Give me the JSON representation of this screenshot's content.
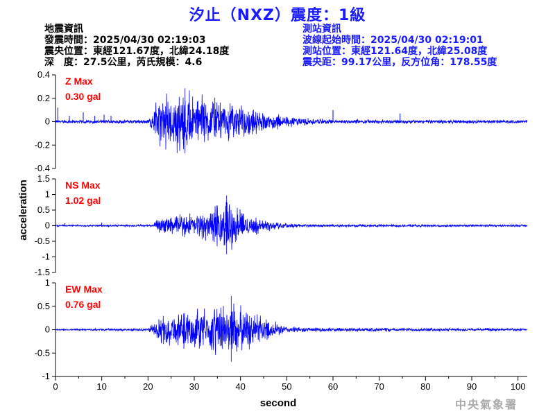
{
  "title": "汐止（NXZ）震度：1級",
  "quake_info": {
    "heading": "地震資訊",
    "origin_time": "發震時間：2025/04/30 02:19:03",
    "epicenter": "震央位置：東經121.67度，北緯24.18度",
    "depth_magnitude": "深　度：27.5公里，芮氏規模：4.6"
  },
  "station_info": {
    "heading": "測站資訊",
    "wave_start": "波線起始時間：2025/04/30 02:19:01",
    "station_location": "測站位置：東經121.64度，北緯25.08度",
    "distance_azimuth": "震央距：99.17公里，反方位角：178.55度"
  },
  "watermark": "中央氣象署",
  "colors": {
    "trace": "#0000ff",
    "max_label": "#ff0000",
    "title": "#1a1aff",
    "axis": "#000000"
  },
  "chart_data": {
    "type": "line",
    "xlabel": "second",
    "ylabel": "acceleration",
    "xlim": [
      0,
      102
    ],
    "x_ticks": [
      0,
      10,
      20,
      30,
      40,
      50,
      60,
      70,
      80,
      90,
      100
    ],
    "panels": [
      {
        "component": "Z",
        "max_label": "Z Max",
        "max_value": "0.30 gal",
        "peak": 0.3,
        "ylim": [
          -0.4,
          0.4
        ],
        "y_ticks": [
          -0.4,
          -0.2,
          0,
          0.2,
          0.4
        ],
        "y_tick_labels": [
          "-0.4",
          "-0.2",
          "0",
          "0.2",
          "0.4"
        ],
        "envelope": [
          [
            0,
            0.015
          ],
          [
            20,
            0.02
          ],
          [
            21,
            0.08
          ],
          [
            22,
            0.2
          ],
          [
            25,
            0.26
          ],
          [
            28,
            0.28
          ],
          [
            31,
            0.24
          ],
          [
            35,
            0.2
          ],
          [
            40,
            0.16
          ],
          [
            45,
            0.09
          ],
          [
            50,
            0.05
          ],
          [
            55,
            0.03
          ],
          [
            60,
            0.02
          ],
          [
            102,
            0.015
          ]
        ],
        "spikes": [
          [
            0.5,
            0.12
          ],
          [
            3,
            0.05
          ],
          [
            6,
            0.08
          ],
          [
            8.5,
            0.05
          ],
          [
            10.5,
            0.06
          ],
          [
            12,
            0.05
          ],
          [
            60,
            0.1
          ],
          [
            74.5,
            0.07
          ]
        ]
      },
      {
        "component": "NS",
        "max_label": "NS Max",
        "max_value": "1.02 gal",
        "peak": 1.02,
        "ylim": [
          -1.5,
          1.5
        ],
        "y_ticks": [
          -1.5,
          -1,
          -0.5,
          0,
          0.5,
          1,
          1.5
        ],
        "y_tick_labels": [
          "-1.5",
          "-1",
          "-0.5",
          "0",
          "0.5",
          "1",
          "1.5"
        ],
        "envelope": [
          [
            0,
            0.03
          ],
          [
            21,
            0.04
          ],
          [
            22,
            0.2
          ],
          [
            25,
            0.35
          ],
          [
            30,
            0.4
          ],
          [
            33,
            0.5
          ],
          [
            36,
            0.75
          ],
          [
            37,
            1.02
          ],
          [
            39,
            0.6
          ],
          [
            42,
            0.35
          ],
          [
            45,
            0.2
          ],
          [
            50,
            0.08
          ],
          [
            55,
            0.05
          ],
          [
            102,
            0.04
          ]
        ],
        "spikes": [
          [
            2,
            0.08
          ],
          [
            10,
            0.1
          ]
        ]
      },
      {
        "component": "EW",
        "max_label": "EW Max",
        "max_value": "0.76 gal",
        "peak": 0.76,
        "ylim": [
          -1,
          1
        ],
        "y_ticks": [
          -1,
          -0.5,
          0,
          0.5,
          1
        ],
        "y_tick_labels": [
          "-1",
          "-0.5",
          "0",
          "0.5",
          "1"
        ],
        "envelope": [
          [
            0,
            0.02
          ],
          [
            20,
            0.03
          ],
          [
            21,
            0.15
          ],
          [
            23,
            0.3
          ],
          [
            27,
            0.4
          ],
          [
            31,
            0.45
          ],
          [
            35,
            0.55
          ],
          [
            38,
            0.7
          ],
          [
            40,
            0.55
          ],
          [
            43,
            0.35
          ],
          [
            47,
            0.2
          ],
          [
            50,
            0.08
          ],
          [
            55,
            0.05
          ],
          [
            102,
            0.03
          ]
        ],
        "spikes": []
      }
    ]
  }
}
